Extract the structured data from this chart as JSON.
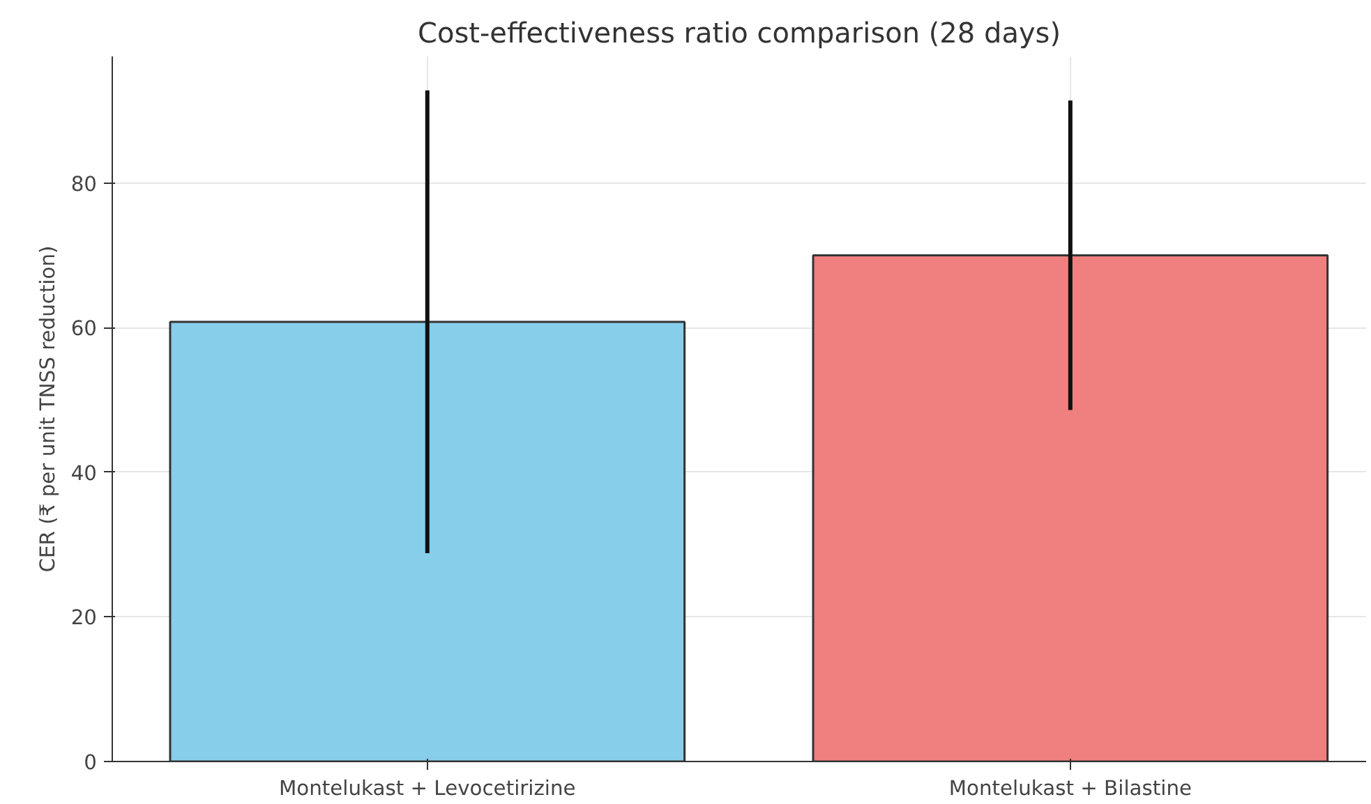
{
  "chart_data": {
    "type": "bar",
    "title": "Cost-effectiveness ratio comparison (28 days)",
    "ylabel": "CER (₹ per unit TNSS reduction)",
    "categories": [
      "Montelukast + Levocetirizine",
      "Montelukast + Bilastine"
    ],
    "values": [
      60.8,
      70.0
    ],
    "errors": [
      32,
      21.4
    ],
    "colors": [
      "#87ceeb",
      "#f08080"
    ],
    "ylim": [
      0,
      97.5
    ],
    "yticks": [
      0,
      20,
      40,
      60,
      80
    ],
    "grid": true
  }
}
